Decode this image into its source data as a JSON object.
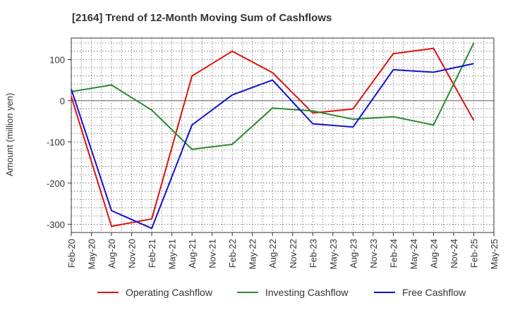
{
  "chart_data": {
    "type": "line",
    "title": "[2164]  Trend of 12-Month Moving Sum of Cashflows",
    "ylabel": "Amount (million yen)",
    "xlabel": "",
    "ylim": [
      -320,
      152
    ],
    "yticks": [
      100,
      0,
      -100,
      -200,
      -300
    ],
    "categories": [
      "Feb-20",
      "May-20",
      "Aug-20",
      "Nov-20",
      "Feb-21",
      "May-21",
      "Aug-21",
      "Nov-21",
      "Feb-22",
      "May-22",
      "Aug-22",
      "Nov-22",
      "Feb-23",
      "May-23",
      "Aug-23",
      "Nov-23",
      "Feb-24",
      "May-24",
      "Aug-24",
      "Nov-24",
      "Feb-25",
      "May-25"
    ],
    "series": [
      {
        "name": "Operating Cashflow",
        "color": "#dd1111",
        "points": [
          [
            0,
            10
          ],
          [
            2,
            -305
          ],
          [
            4,
            -287
          ],
          [
            6,
            60
          ],
          [
            8,
            120
          ],
          [
            10,
            68
          ],
          [
            12,
            -30
          ],
          [
            14,
            -20
          ],
          [
            16,
            114
          ],
          [
            18,
            127
          ],
          [
            20,
            -48
          ]
        ]
      },
      {
        "name": "Investing Cashflow",
        "color": "#2a8a2a",
        "points": [
          [
            0,
            22
          ],
          [
            2,
            38
          ],
          [
            4,
            -23
          ],
          [
            6,
            -118
          ],
          [
            8,
            -106
          ],
          [
            10,
            -18
          ],
          [
            12,
            -25
          ],
          [
            14,
            -45
          ],
          [
            16,
            -39
          ],
          [
            18,
            -59
          ],
          [
            20,
            140
          ]
        ]
      },
      {
        "name": "Free Cashflow",
        "color": "#1111cc",
        "points": [
          [
            0,
            28
          ],
          [
            2,
            -267
          ],
          [
            4,
            -310
          ],
          [
            6,
            -59
          ],
          [
            8,
            14
          ],
          [
            10,
            50
          ],
          [
            12,
            -56
          ],
          [
            14,
            -64
          ],
          [
            16,
            75
          ],
          [
            18,
            69
          ],
          [
            20,
            90
          ]
        ]
      }
    ],
    "grid": true,
    "legend_position": "bottom"
  }
}
